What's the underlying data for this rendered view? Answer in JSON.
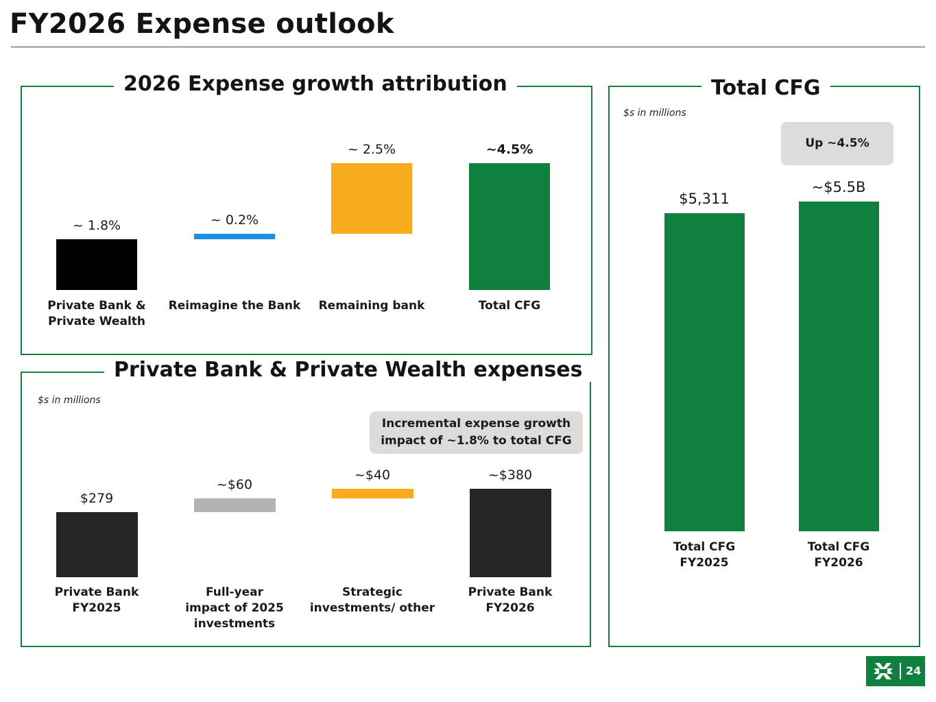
{
  "page": {
    "title": "FY2026 Expense outlook",
    "page_number": "24",
    "logo_icon": "citizens-logo-icon",
    "brand_color": "#10803f"
  },
  "attribution": {
    "title": "2026 Expense growth attribution",
    "labels": [
      "~ 1.8%",
      "~ 0.2%",
      "~ 2.5%",
      "~4.5%"
    ],
    "categories": [
      [
        "Private Bank &",
        "Private Wealth"
      ],
      [
        "Reimagine the Bank"
      ],
      [
        "Remaining bank"
      ],
      [
        "Total CFG"
      ]
    ]
  },
  "private_bank": {
    "title": "Private Bank & Private Wealth expenses",
    "note": "$s in millions",
    "callout": [
      "Incremental expense growth",
      "impact of ~1.8% to total CFG"
    ],
    "labels": [
      "$279",
      "~$60",
      "~$40",
      "~$380"
    ],
    "categories": [
      [
        "Private Bank",
        "FY2025"
      ],
      [
        "Full-year",
        "impact of 2025",
        "investments"
      ],
      [
        "Strategic",
        "investments/ other"
      ],
      [
        "Private Bank",
        "FY2026"
      ]
    ]
  },
  "total": {
    "title": "Total CFG",
    "note": "$s in millions",
    "callout": "Up ~4.5%",
    "labels": [
      "$5,311",
      "~$5.5B"
    ],
    "categories": [
      [
        "Total CFG",
        "FY2025"
      ],
      [
        "Total CFG",
        "FY2026"
      ]
    ]
  },
  "chart_data": [
    {
      "type": "bar",
      "subtype": "waterfall",
      "title": "2026 Expense growth attribution",
      "categories": [
        "Private Bank & Private Wealth",
        "Reimagine the Bank",
        "Remaining bank",
        "Total CFG"
      ],
      "values": [
        1.8,
        0.2,
        2.5,
        4.5
      ],
      "unit": "%",
      "is_total": [
        false,
        false,
        false,
        true
      ],
      "colors": [
        "#000000",
        "#1a8fe3",
        "#f8ac1d",
        "#10803f"
      ]
    },
    {
      "type": "bar",
      "subtype": "waterfall",
      "title": "Private Bank & Private Wealth expenses",
      "categories": [
        "Private Bank FY2025",
        "Full-year impact of 2025 investments",
        "Strategic investments/ other",
        "Private Bank FY2026"
      ],
      "values": [
        279,
        60,
        40,
        380
      ],
      "unit": "$ millions",
      "is_total": [
        true,
        false,
        false,
        true
      ],
      "colors": [
        "#262626",
        "#b3b3b3",
        "#f8ac1d",
        "#262626"
      ]
    },
    {
      "type": "bar",
      "title": "Total CFG",
      "categories": [
        "Total CFG FY2025",
        "Total CFG FY2026"
      ],
      "values": [
        5311,
        5500
      ],
      "unit": "$ millions",
      "colors": [
        "#10803f",
        "#10803f"
      ]
    }
  ]
}
